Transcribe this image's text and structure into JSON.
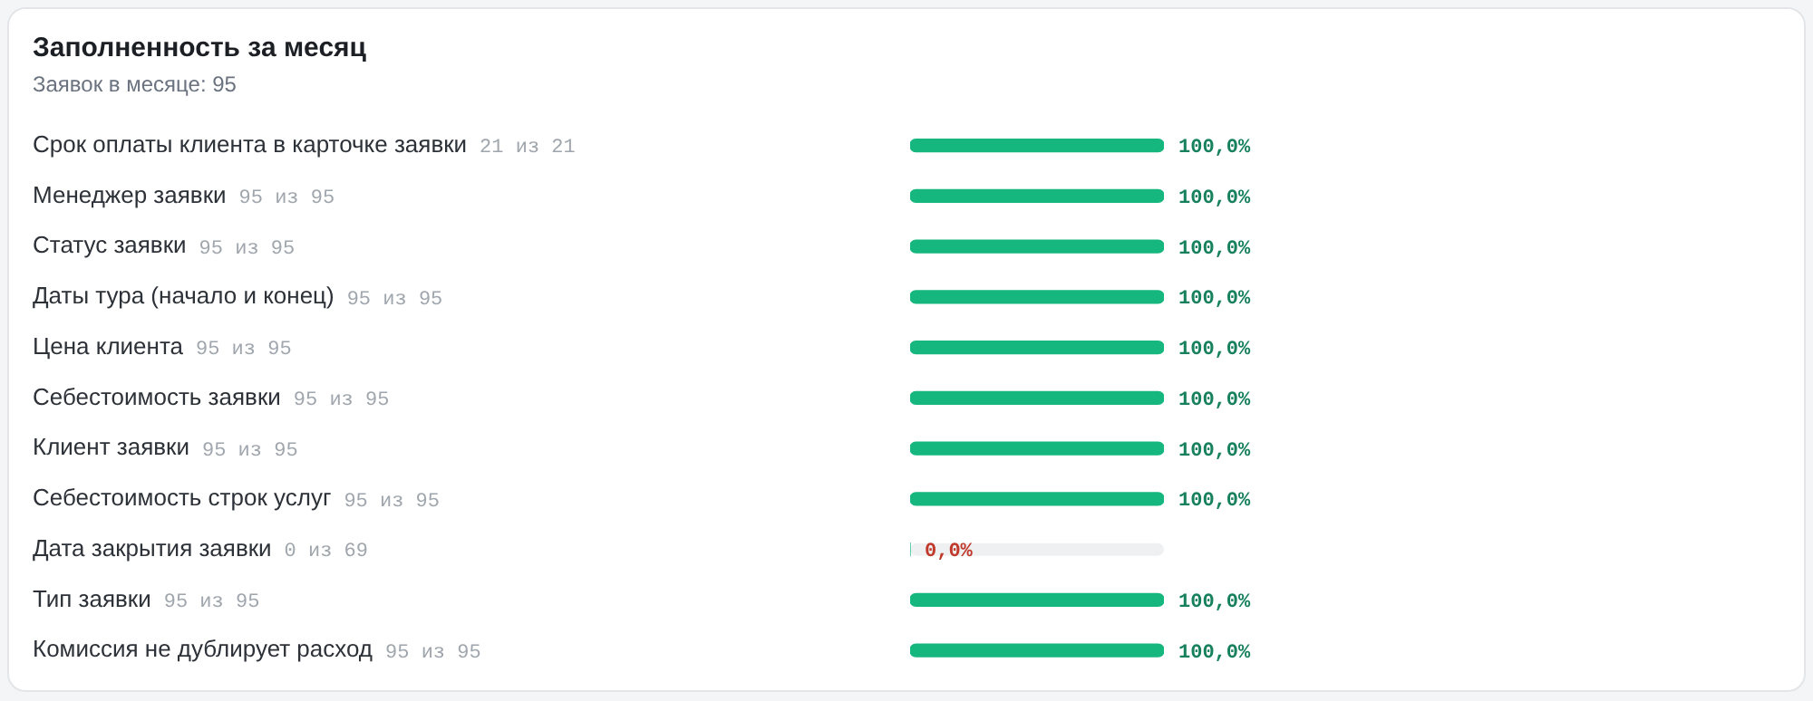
{
  "chart_data": {
    "type": "bar",
    "orientation": "horizontal",
    "title": "Заполненность за месяц",
    "subtitle": "Заявок в месяце: 95",
    "categories": [
      "Срок оплаты клиента в карточке заявки",
      "Менеджер заявки",
      "Статус заявки",
      "Даты тура (начало и конец)",
      "Цена клиента",
      "Себестоимость заявки",
      "Клиент заявки",
      "Себестоимость строк услуг",
      "Дата закрытия заявки",
      "Тип заявки",
      "Комиссия не дублирует расход"
    ],
    "values": [
      100,
      100,
      100,
      100,
      100,
      100,
      100,
      100,
      0,
      100,
      100
    ],
    "value_labels": [
      "100,0%",
      "100,0%",
      "100,0%",
      "100,0%",
      "100,0%",
      "100,0%",
      "100,0%",
      "100,0%",
      "0,0%",
      "100,0%",
      "100,0%"
    ],
    "annotations": [
      "21 из 21",
      "95 из 95",
      "95 из 95",
      "95 из 95",
      "95 из 95",
      "95 из 95",
      "95 из 95",
      "95 из 95",
      "0 из 69",
      "95 из 95",
      "95 из 95"
    ],
    "color": "#16b67f",
    "xlim": [
      0,
      100
    ],
    "tick_labels": "y",
    "grid": false,
    "legend": false
  }
}
